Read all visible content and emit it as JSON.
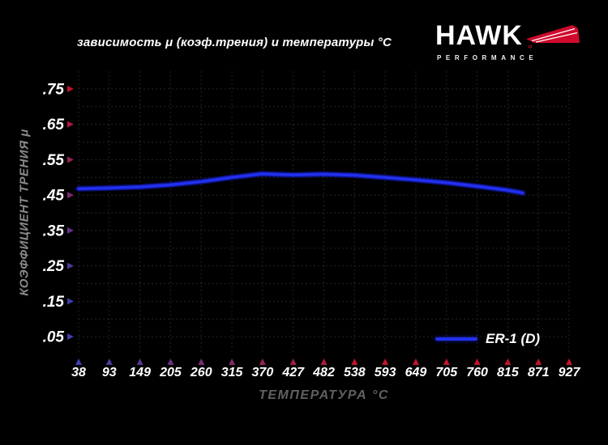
{
  "header": {
    "title": "зависимость μ (коэф.трения) и температуры °C",
    "logo": {
      "brand": "HAWK",
      "tagline": "PERFORMANCE"
    }
  },
  "legend": {
    "label": "ER-1 (D)"
  },
  "chart_data": {
    "type": "line",
    "title": "зависимость μ (коэф.трения) и температуры °C",
    "xlabel": "ТЕМПЕРАТУРА °C",
    "ylabel": "КОЭФФИЦИЕНТ ТРЕНИЯ μ",
    "x_tick_labels": [
      "38",
      "93",
      "149",
      "205",
      "260",
      "315",
      "370",
      "427",
      "482",
      "538",
      "593",
      "649",
      "705",
      "760",
      "815",
      "871",
      "927"
    ],
    "x_tick_values_c": [
      38,
      93,
      149,
      205,
      260,
      315,
      370,
      427,
      482,
      538,
      593,
      649,
      705,
      760,
      815,
      871,
      927
    ],
    "y_tick_labels": [
      ".75",
      ".65",
      ".55",
      ".45",
      ".35",
      ".25",
      ".15",
      ".05"
    ],
    "y_tick_values": [
      0.75,
      0.65,
      0.55,
      0.45,
      0.35,
      0.25,
      0.15,
      0.05
    ],
    "ylim": [
      0,
      0.8
    ],
    "grid": "dashed",
    "grid_step_y": 0.05,
    "legend_position": "bottom-right",
    "series": [
      {
        "name": "ER-1 (D)",
        "color": "#2230ee",
        "points": [
          [
            38,
            0.468
          ],
          [
            93,
            0.47
          ],
          [
            149,
            0.473
          ],
          [
            205,
            0.479
          ],
          [
            260,
            0.488
          ],
          [
            315,
            0.5
          ],
          [
            370,
            0.51
          ],
          [
            427,
            0.507
          ],
          [
            482,
            0.509
          ],
          [
            538,
            0.506
          ],
          [
            593,
            0.5
          ],
          [
            649,
            0.493
          ],
          [
            705,
            0.485
          ],
          [
            760,
            0.475
          ],
          [
            815,
            0.464
          ],
          [
            843,
            0.456
          ]
        ]
      }
    ]
  },
  "colors": {
    "background": "#000000",
    "axis_red": "#c1142c",
    "axis_blue": "#3f3fae",
    "grid": "#222622",
    "curve": "#2230ee",
    "curve_glow": "#0d1490",
    "tick_label": "#ffffff",
    "x_title": "#606060",
    "y_title": "#8a8a8a",
    "logo_red": "#cf0a2c"
  }
}
